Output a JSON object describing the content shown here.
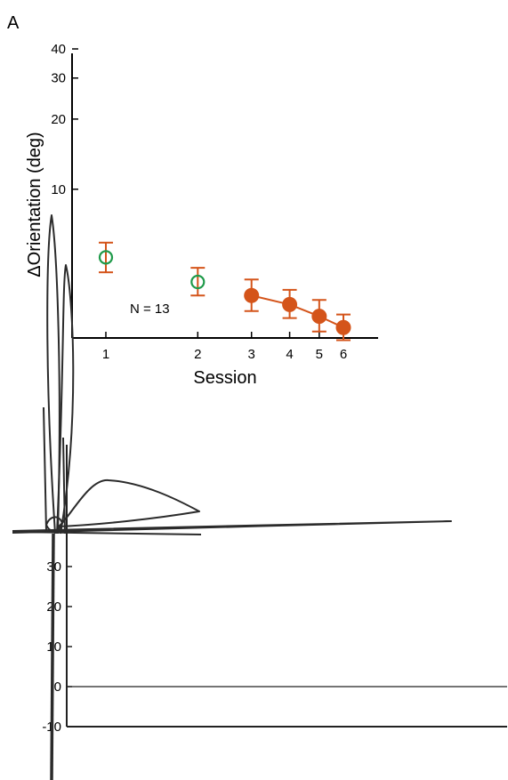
{
  "panel_label": "A",
  "chart_data": [
    {
      "type": "scatter",
      "panel": "A",
      "xlabel": "Session",
      "ylabel": "ΔOrientation (deg)",
      "yscale": "log",
      "xscale": "log",
      "x_ticks": [
        "1",
        "2",
        "3",
        "4",
        "5",
        "6"
      ],
      "y_ticks": [
        "10",
        "20",
        "30",
        "40"
      ],
      "annotation": "N = 13",
      "colors": {
        "open_series": "#1f9a4a",
        "filled_series": "#d4541a",
        "error_bars": "#d4541a"
      },
      "series": [
        {
          "marker": "open-circle",
          "points": [
            {
              "x": 1,
              "y": 5.1,
              "err_low": 4.4,
              "err_high": 5.9
            },
            {
              "x": 2,
              "y": 4.0,
              "err_low": 3.5,
              "err_high": 4.6
            }
          ]
        },
        {
          "marker": "filled-circle",
          "connected": true,
          "points": [
            {
              "x": 3,
              "y": 3.5,
              "err_low": 3.0,
              "err_high": 4.1
            },
            {
              "x": 4,
              "y": 3.2,
              "err_low": 2.8,
              "err_high": 3.7
            },
            {
              "x": 5,
              "y": 2.85,
              "err_low": 2.45,
              "err_high": 3.35
            },
            {
              "x": 6,
              "y": 2.55,
              "err_low": 2.25,
              "err_high": 2.9
            }
          ]
        }
      ]
    },
    {
      "type": "line",
      "note": "lower panel rendered as a garbled plot with overlapping stroke artifacts",
      "y_ticks": [
        "30",
        "20",
        "10",
        "0",
        "-10"
      ],
      "ylim": [
        -10,
        30
      ],
      "grid": false,
      "reference_line_y": 0
    }
  ]
}
